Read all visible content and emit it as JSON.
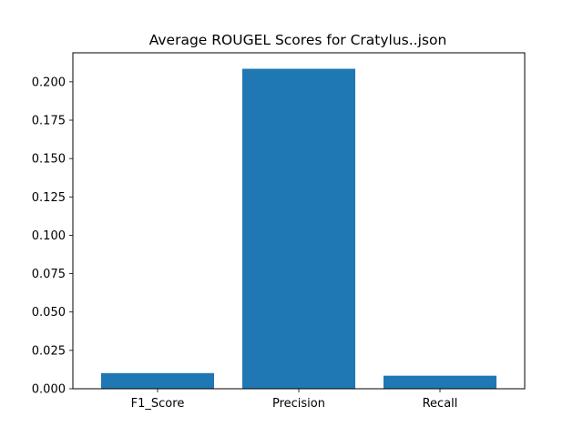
{
  "chart_data": {
    "type": "bar",
    "title": "Average ROUGEL Scores for Cratylus..json",
    "xlabel": "",
    "ylabel": "",
    "categories": [
      "F1_Score",
      "Precision",
      "Recall"
    ],
    "values": [
      0.0102,
      0.2085,
      0.0085
    ],
    "ylim": [
      0,
      0.2189
    ],
    "yticks": [
      0.0,
      0.025,
      0.05,
      0.075,
      0.1,
      0.125,
      0.15,
      0.175,
      0.2
    ],
    "ytick_labels": [
      "0.000",
      "0.025",
      "0.050",
      "0.075",
      "0.100",
      "0.125",
      "0.150",
      "0.175",
      "0.200"
    ],
    "bar_color": "#1f77b4",
    "grid": false,
    "legend": "none"
  }
}
